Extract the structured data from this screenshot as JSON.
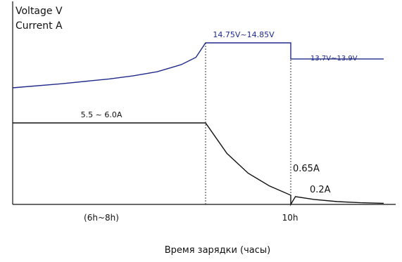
{
  "chart_data": {
    "type": "line",
    "title": "",
    "ylabels": {
      "voltage": "Voltage  V",
      "current": "Current  A"
    },
    "xlabel": "Время зарядки (часы)",
    "x_ticks": [
      {
        "label": "(6h~8h)"
      },
      {
        "label": "10h"
      }
    ],
    "annotations": {
      "voltage_cv": "14.75V~14.85V",
      "voltage_float": "13.7V~13.9V",
      "current_cc": "5.5 ~ 6.0A",
      "current_end": "0.65A",
      "current_float": "0.2A"
    },
    "phase_boundaries_h": [
      8,
      10
    ],
    "series": [
      {
        "kind": "voltage",
        "color": "#1f2a8a",
        "x": [
          0,
          2,
          4,
          5,
          6,
          7,
          7.6,
          8,
          10,
          10,
          12
        ],
        "y": [
          12.0,
          12.25,
          12.55,
          12.75,
          13.0,
          13.45,
          13.9,
          14.8,
          14.8,
          13.8,
          13.8
        ]
      },
      {
        "kind": "current",
        "color": "#111111",
        "x": [
          0,
          8,
          8.5,
          9,
          9.5,
          10,
          10,
          10.1,
          10.5,
          11,
          11.5,
          12
        ],
        "y": [
          5.75,
          5.75,
          3.6,
          2.2,
          1.3,
          0.65,
          0.0,
          0.55,
          0.35,
          0.2,
          0.12,
          0.08
        ]
      }
    ],
    "colors": {
      "axis": "#111111",
      "voltage": "#1f2a8a",
      "current": "#111111",
      "guide": "#333333"
    }
  }
}
